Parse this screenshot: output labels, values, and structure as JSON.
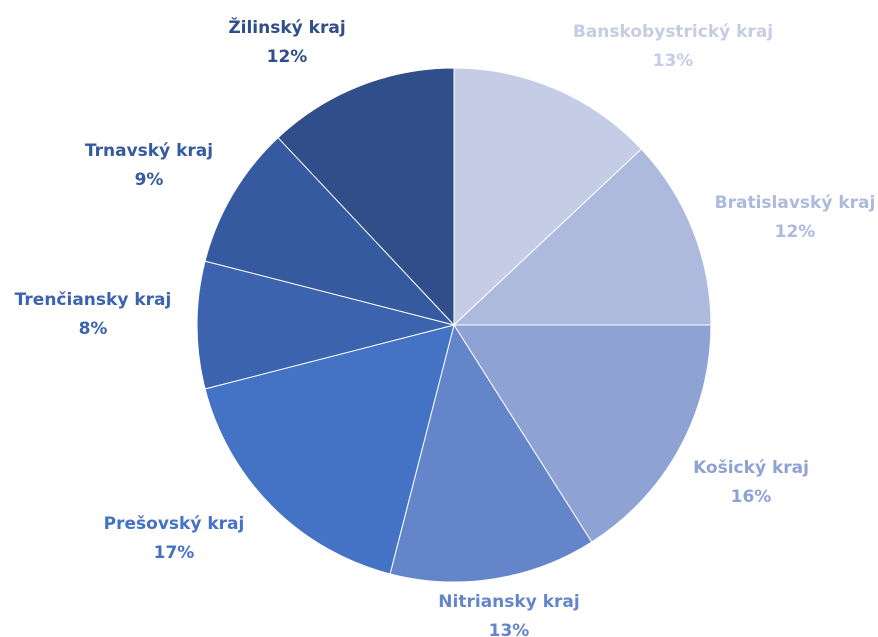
{
  "chart_data": {
    "type": "pie",
    "categories": [
      "Banskobystrický kraj",
      "Bratislavský kraj",
      "Košický kraj",
      "Nitriansky kraj",
      "Prešovský kraj",
      "Trenčiansky kraj",
      "Trnavský kraj",
      "Žilinský kraj"
    ],
    "values": [
      13,
      12,
      16,
      13,
      17,
      8,
      9,
      12
    ],
    "value_labels": [
      "13%",
      "12%",
      "16%",
      "13%",
      "17%",
      "8%",
      "9%",
      "12%"
    ],
    "colors": [
      "#c5cde6",
      "#adbade",
      "#8fa2d4",
      "#6585cb",
      "#4472c4",
      "#3c63ae",
      "#355a9f",
      "#2f4e8a"
    ]
  }
}
